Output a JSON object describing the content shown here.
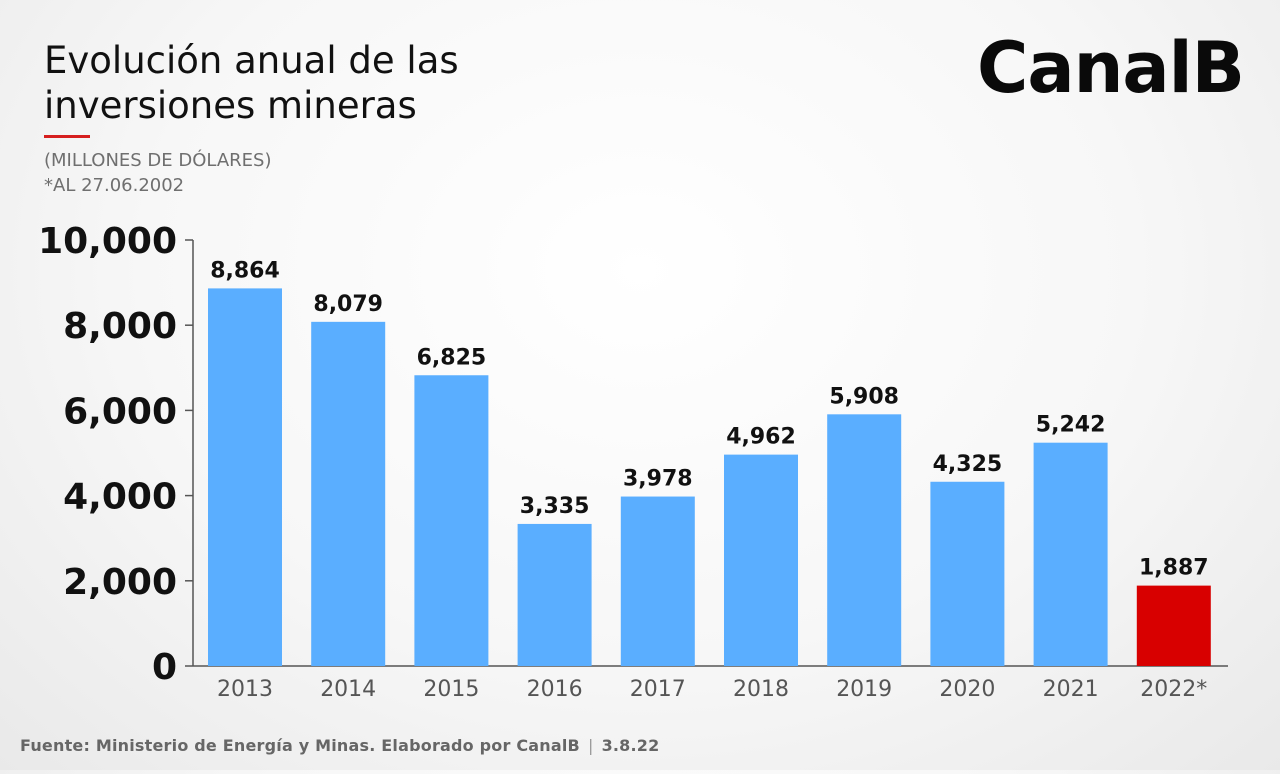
{
  "header": {
    "title": "Evolución anual de las inversiones mineras",
    "subtitle": "(MILLONES DE DÓLARES)",
    "note": "*AL 27.06.2002",
    "brand": "CanalB"
  },
  "footer": {
    "source": "Fuente: Ministerio de Energía y Minas. Elaborado por CanalB",
    "separator": "|",
    "date": "3.8.22"
  },
  "colors": {
    "bar": "#5aaeff",
    "highlight": "#d80000",
    "accent_rule": "#d61f1f"
  },
  "chart_data": {
    "type": "bar",
    "title": "Evolución anual de las inversiones mineras",
    "subtitle": "(MILLONES DE DÓLARES)",
    "categories": [
      "2013",
      "2014",
      "2015",
      "2016",
      "2017",
      "2018",
      "2019",
      "2020",
      "2021",
      "2022*"
    ],
    "values": [
      8864,
      8079,
      6825,
      3335,
      3978,
      4962,
      5908,
      4325,
      5242,
      1887
    ],
    "value_labels": [
      "8,864",
      "8,079",
      "6,825",
      "3,335",
      "3,978",
      "4,962",
      "5,908",
      "4,325",
      "5,242",
      "1,887"
    ],
    "highlight_category": "2022*",
    "ylim": [
      0,
      10000
    ],
    "yticks": [
      0,
      2000,
      4000,
      6000,
      8000,
      10000
    ],
    "ytick_labels": [
      "0",
      "2,000",
      "4,000",
      "6,000",
      "8,000",
      "10,000"
    ],
    "xlabel": "",
    "ylabel": "",
    "grid": false,
    "legend": "none"
  }
}
